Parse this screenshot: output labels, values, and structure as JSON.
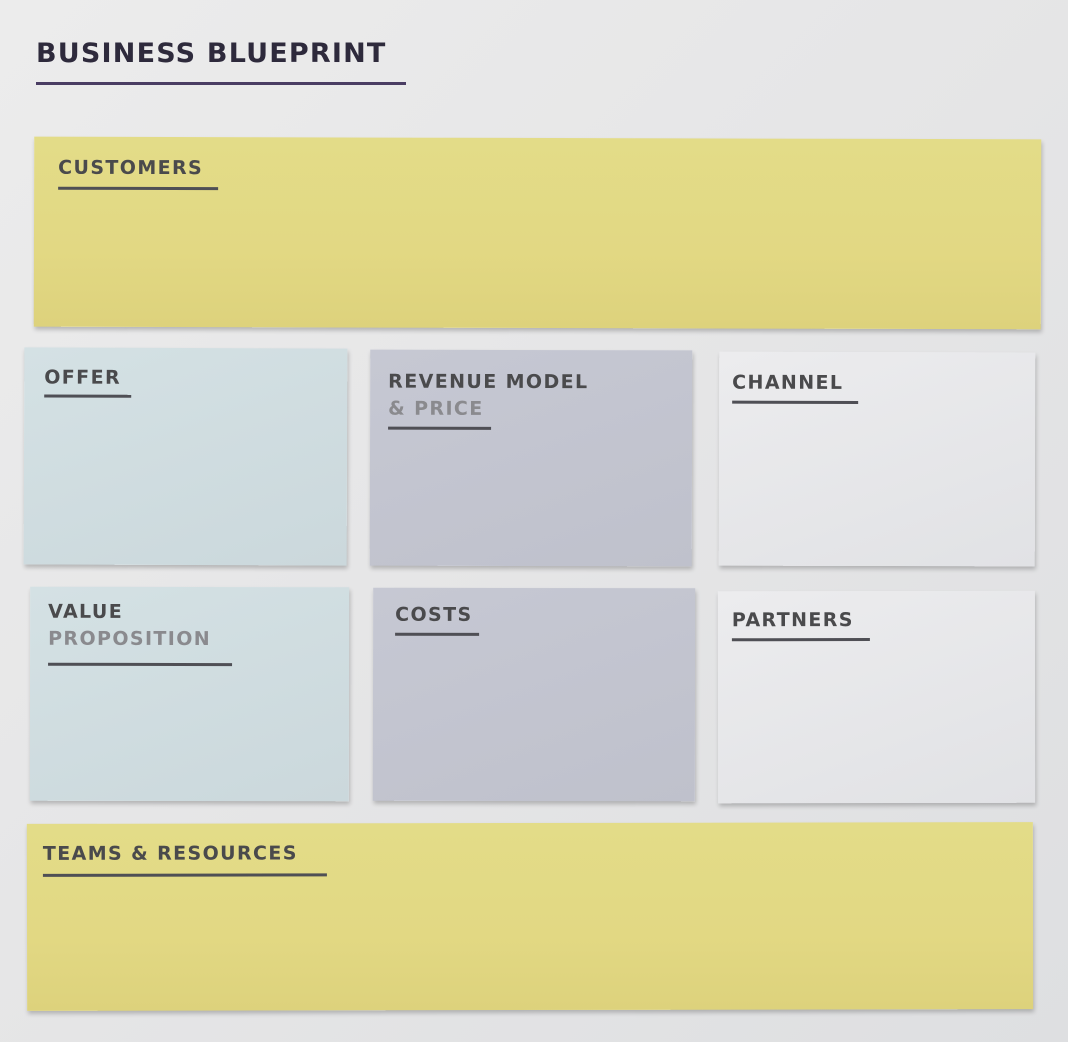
{
  "board": {
    "title": "BUSINESS BLUEPRINT"
  },
  "cards": {
    "customers": {
      "label": "CUSTOMERS"
    },
    "offer": {
      "label": "OFFER"
    },
    "revenue_model": {
      "label_line1": "REVENUE MODEL",
      "label_line2": "& PRICE"
    },
    "channel": {
      "label": "CHANNEL"
    },
    "value_proposition": {
      "label_line1": "VALUE",
      "label_line2": "PROPOSITION"
    },
    "costs": {
      "label": "COSTS"
    },
    "partners": {
      "label": "PARTNERS"
    },
    "teams_resources": {
      "label": "TEAMS & RESOURCES"
    }
  },
  "colors": {
    "yellow_note": "#e2d883",
    "blue_note": "#cfdbdf",
    "lilac_note": "#c3c5d0",
    "white_note": "#e6e7e9",
    "title_rule": "#4a3d63"
  }
}
